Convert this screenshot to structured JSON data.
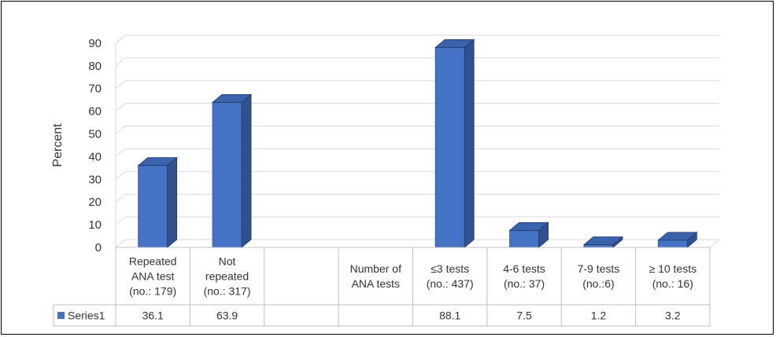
{
  "chart_data": {
    "type": "bar",
    "style": "3d-column",
    "ylabel": "Percent",
    "xlabel": "",
    "ylim": [
      0,
      90
    ],
    "yticks": [
      0,
      10,
      20,
      30,
      40,
      50,
      60,
      70,
      80,
      90
    ],
    "grid": true,
    "legend_placement": "data-table",
    "categories": [
      [
        "Repeated",
        "ANA test",
        "(no.: 179)"
      ],
      [
        "Not",
        "repeated",
        "(no.: 317)"
      ],
      [
        ""
      ],
      [
        "Number of",
        "ANA tests"
      ],
      [
        "≤3 tests",
        "(no.: 437)"
      ],
      [
        "4-6 tests",
        "(no.: 37)"
      ],
      [
        "7-9 tests",
        "(no.:6)"
      ],
      [
        "≥ 10 tests",
        "(no.: 16)"
      ]
    ],
    "series": [
      {
        "name": "Series1",
        "color": "#4472c4",
        "values": [
          36.1,
          63.9,
          null,
          null,
          88.1,
          7.5,
          1.2,
          3.2
        ],
        "labels": [
          "36.1",
          "63.9",
          "",
          "",
          "88.1",
          "7.5",
          "1.2",
          "3.2"
        ]
      }
    ]
  }
}
